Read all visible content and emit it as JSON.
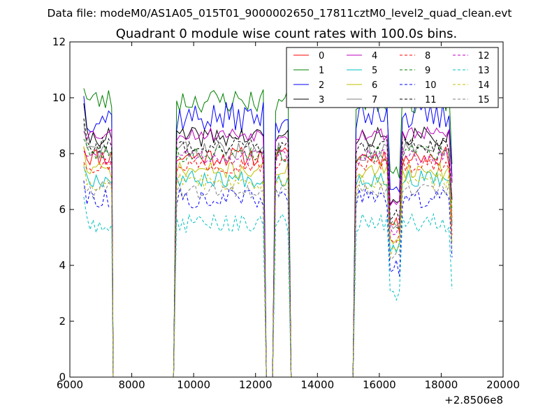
{
  "figure": {
    "suptitle": "Data file: modeM0/AS1A05_015T01_9000002650_17811cztM0_level2_quad_clean.evt",
    "title": "Quadrant 0 module wise count rates with 100.0s bins.",
    "offset_label": "+2.8506e8"
  },
  "chart_data": {
    "type": "line",
    "title": "Quadrant 0 module wise count rates with 100.0s bins.",
    "xlabel": "",
    "ylabel": "",
    "x_offset": 285060000,
    "xlim": [
      6000,
      20000
    ],
    "ylim": [
      0,
      12
    ],
    "xticks": [
      6000,
      8000,
      10000,
      12000,
      14000,
      16000,
      18000,
      20000
    ],
    "yticks": [
      0,
      2,
      4,
      6,
      8,
      10,
      12
    ],
    "xtick_labels": [
      "6000",
      "8000",
      "10000",
      "12000",
      "14000",
      "16000",
      "18000",
      "20000"
    ],
    "ytick_labels": [
      "0",
      "2",
      "4",
      "6",
      "8",
      "10",
      "12"
    ],
    "grid": false,
    "legend_position": "top-right",
    "legend_columns": 4,
    "x_segments": [
      {
        "start": 6450,
        "end": 7350,
        "drop_to": 7400
      },
      {
        "start": 9450,
        "end": 12250,
        "rise_from": 9350,
        "drop_to": 12350
      },
      {
        "start": 12650,
        "end": 13050,
        "rise_from": 12550,
        "drop_to": 13150
      },
      {
        "start": 15250,
        "end": 18350,
        "rise_from": 15150
      }
    ],
    "series": [
      {
        "name": "0",
        "color": "#ff0000",
        "dashed": false,
        "level": 7.9,
        "amp": 0.35,
        "seed": 11
      },
      {
        "name": "1",
        "color": "#008000",
        "dashed": false,
        "level": 9.9,
        "amp": 0.45,
        "seed": 23
      },
      {
        "name": "2",
        "color": "#0000ff",
        "dashed": false,
        "level": 9.3,
        "amp": 0.55,
        "seed": 37
      },
      {
        "name": "3",
        "color": "#000000",
        "dashed": false,
        "level": 8.6,
        "amp": 0.35,
        "seed": 41
      },
      {
        "name": "4",
        "color": "#bf00bf",
        "dashed": false,
        "level": 8.7,
        "amp": 0.25,
        "seed": 53
      },
      {
        "name": "5",
        "color": "#00bfbf",
        "dashed": false,
        "level": 7.1,
        "amp": 0.3,
        "seed": 67
      },
      {
        "name": "6",
        "color": "#bfbf00",
        "dashed": false,
        "level": 7.4,
        "amp": 0.3,
        "seed": 71
      },
      {
        "name": "7",
        "color": "#808080",
        "dashed": false,
        "level": 8.1,
        "amp": 0.35,
        "seed": 83
      },
      {
        "name": "8",
        "color": "#ff0000",
        "dashed": true,
        "level": 7.6,
        "amp": 0.3,
        "seed": 97
      },
      {
        "name": "9",
        "color": "#008000",
        "dashed": true,
        "level": 8.0,
        "amp": 0.3,
        "seed": 101
      },
      {
        "name": "10",
        "color": "#0000ff",
        "dashed": true,
        "level": 6.4,
        "amp": 0.35,
        "seed": 113
      },
      {
        "name": "11",
        "color": "#000000",
        "dashed": true,
        "level": 8.3,
        "amp": 0.3,
        "seed": 127
      },
      {
        "name": "12",
        "color": "#bf00bf",
        "dashed": true,
        "level": 7.9,
        "amp": 0.3,
        "seed": 131
      },
      {
        "name": "13",
        "color": "#00bfbf",
        "dashed": true,
        "level": 5.5,
        "amp": 0.35,
        "seed": 149
      },
      {
        "name": "14",
        "color": "#bfbf00",
        "dashed": true,
        "level": 7.0,
        "amp": 0.3,
        "seed": 157
      },
      {
        "name": "15",
        "color": "#808080",
        "dashed": true,
        "level": 6.7,
        "amp": 0.3,
        "seed": 163
      }
    ]
  }
}
